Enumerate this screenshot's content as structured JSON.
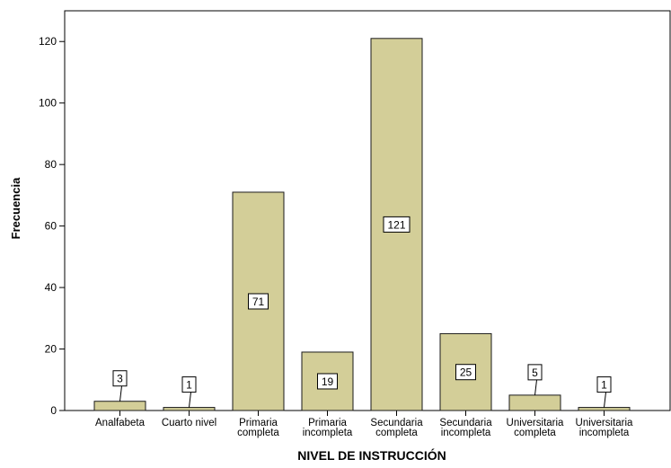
{
  "chart_data": {
    "type": "bar",
    "categories": [
      [
        "Analfabeta"
      ],
      [
        "Cuarto nivel"
      ],
      [
        "Primaria",
        "completa"
      ],
      [
        "Primaria",
        "incompleta"
      ],
      [
        "Secundaria",
        "completa"
      ],
      [
        "Secundaria",
        "incompleta"
      ],
      [
        "Universitaria",
        "completa"
      ],
      [
        "Universitaria",
        "incompleta"
      ]
    ],
    "values": [
      3,
      1,
      71,
      19,
      121,
      25,
      5,
      1
    ],
    "data_labels": [
      "3",
      "1",
      "71",
      "19",
      "121",
      "25",
      "5",
      "1"
    ],
    "xlabel": "NIVEL DE INSTRUCCIÓN",
    "ylabel": "Frecuencia",
    "ylim": [
      0,
      130
    ],
    "yticks": [
      0,
      20,
      40,
      60,
      80,
      100,
      120
    ],
    "ytick_labels": [
      "0",
      "20",
      "40",
      "60",
      "80",
      "100",
      "120"
    ],
    "grid": false,
    "legend": "none",
    "bar_color": "#d3ce98",
    "bar_stroke": "#1a1a1a"
  }
}
